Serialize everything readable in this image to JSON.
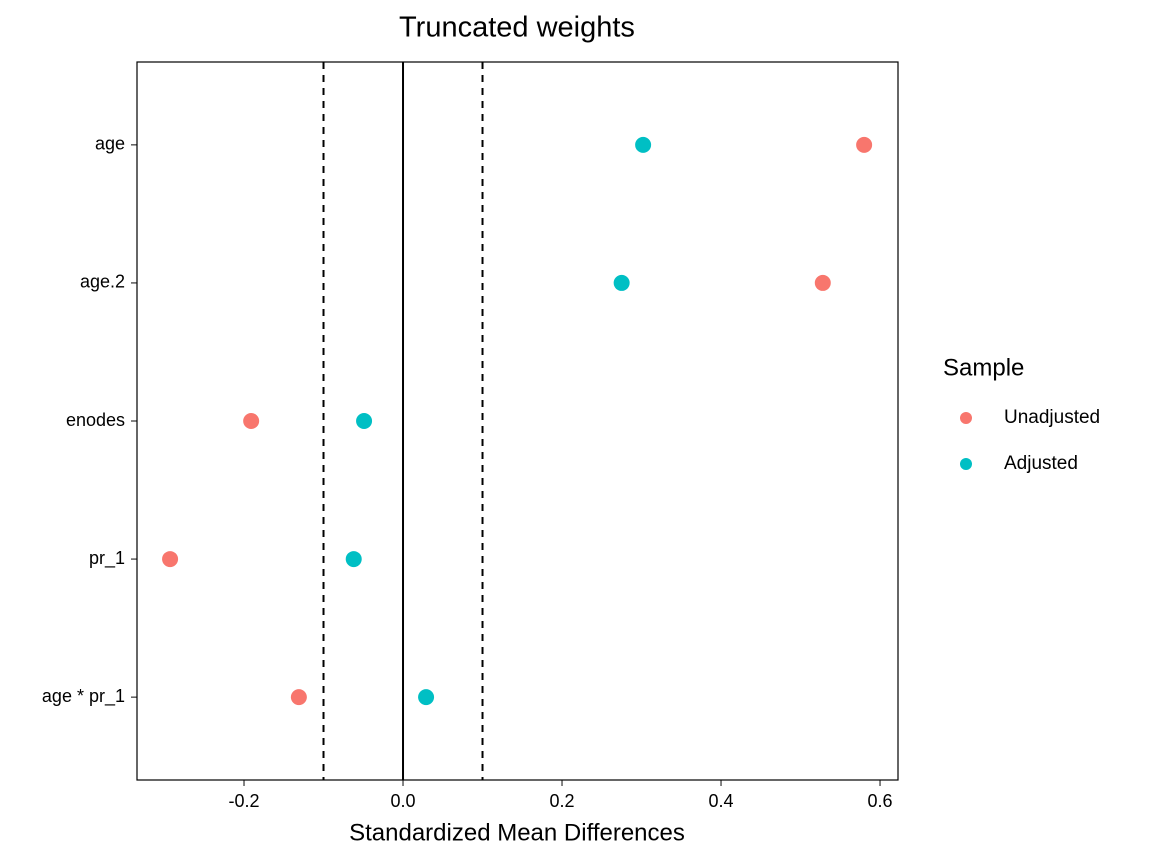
{
  "chart_data": {
    "type": "dot",
    "title": "Truncated weights",
    "x_label": "Standardized Mean Differences",
    "categories": [
      "age",
      "age.2",
      "enodes",
      "pr_1",
      "age * pr_1"
    ],
    "series": [
      {
        "name": "Unadjusted",
        "color": "#F8766D",
        "values": [
          0.58,
          0.528,
          -0.191,
          -0.293,
          -0.131
        ]
      },
      {
        "name": "Adjusted",
        "color": "#00BFC4",
        "values": [
          0.302,
          0.275,
          -0.049,
          -0.062,
          0.029
        ]
      }
    ],
    "xlim": [
      -0.3346,
      0.6226
    ],
    "xticks": [
      -0.2,
      {
        "value": 0,
        "label": "0.0"
      },
      0.2,
      0.4,
      0.6
    ],
    "reference_lines": [
      {
        "value": -0.1,
        "style": "dashed"
      },
      {
        "value": 0,
        "style": "solid"
      },
      {
        "value": 0.1,
        "style": "dashed"
      }
    ],
    "legend_title": "Sample",
    "legend_position": "right",
    "grid": false
  }
}
